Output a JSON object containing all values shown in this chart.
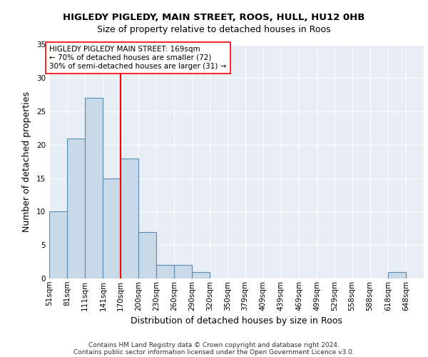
{
  "title1": "HIGLEDY PIGLEDY, MAIN STREET, ROOS, HULL, HU12 0HB",
  "title2": "Size of property relative to detached houses in Roos",
  "xlabel": "Distribution of detached houses by size in Roos",
  "ylabel": "Number of detached properties",
  "bin_labels": [
    "51sqm",
    "81sqm",
    "111sqm",
    "141sqm",
    "170sqm",
    "200sqm",
    "230sqm",
    "260sqm",
    "290sqm",
    "320sqm",
    "350sqm",
    "379sqm",
    "409sqm",
    "439sqm",
    "469sqm",
    "499sqm",
    "529sqm",
    "558sqm",
    "588sqm",
    "618sqm",
    "648sqm"
  ],
  "bar_values": [
    10,
    21,
    27,
    15,
    18,
    7,
    2,
    2,
    1,
    0,
    0,
    0,
    0,
    0,
    0,
    0,
    0,
    0,
    0,
    1,
    0
  ],
  "bar_color": "#c8d9e8",
  "bar_edge_color": "#5a8ab0",
  "bin_edges": [
    51,
    81,
    111,
    141,
    170,
    200,
    230,
    260,
    290,
    320,
    350,
    379,
    409,
    439,
    469,
    499,
    529,
    558,
    588,
    618,
    648,
    678
  ],
  "red_line_x": 170,
  "annotation_text_line1": "HIGLEDY PIGLEDY MAIN STREET: 169sqm",
  "annotation_text_line2": "← 70% of detached houses are smaller (72)",
  "annotation_text_line3": "30% of semi-detached houses are larger (31) →",
  "footer1": "Contains HM Land Registry data © Crown copyright and database right 2024.",
  "footer2": "Contains public sector information licensed under the Open Government Licence v3.0.",
  "ylim": [
    0,
    35
  ],
  "yticks": [
    0,
    5,
    10,
    15,
    20,
    25,
    30,
    35
  ],
  "bg_color": "#e8eef5",
  "grid_color": "#ffffff",
  "title1_fontsize": 9.5,
  "title2_fontsize": 9,
  "axis_label_fontsize": 9,
  "tick_fontsize": 7.5,
  "annotation_fontsize": 7.5,
  "footer_fontsize": 6.5
}
